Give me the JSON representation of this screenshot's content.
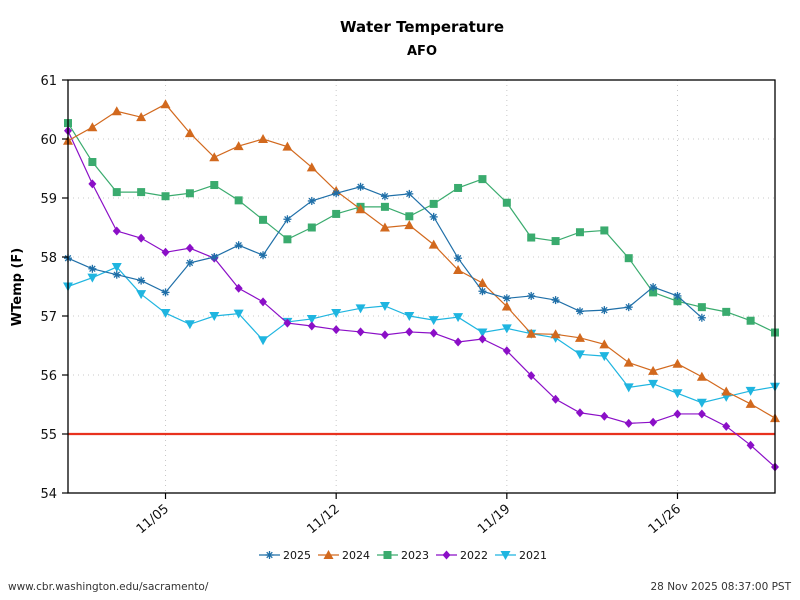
{
  "chart_data": {
    "type": "line",
    "title": "Water Temperature",
    "subtitle": "AFO",
    "xlabel": "",
    "ylabel": "WTemp (F)",
    "ylim": [
      54,
      61
    ],
    "yticks": [
      54,
      55,
      56,
      57,
      58,
      59,
      60,
      61
    ],
    "x_domain_days": [
      1,
      30
    ],
    "x_start_date": "11/01",
    "x_end_date": "11/30",
    "xticks": [
      {
        "day": 5,
        "label": "11/05"
      },
      {
        "day": 12,
        "label": "11/12"
      },
      {
        "day": 19,
        "label": "11/19"
      },
      {
        "day": 26,
        "label": "11/26"
      }
    ],
    "grid": true,
    "legend_position": "bottom-center",
    "reference_line": {
      "value": 55,
      "color": "#e8321e"
    },
    "series": [
      {
        "name": "2025",
        "color": "#1f6fa8",
        "marker": "asterisk",
        "start_day": 1,
        "values": [
          57.98,
          57.8,
          57.7,
          57.6,
          57.4,
          57.9,
          58.0,
          58.2,
          58.03,
          58.64,
          58.95,
          59.08,
          59.19,
          59.03,
          59.07,
          58.68,
          57.98,
          57.42,
          57.3,
          57.34,
          57.27,
          57.08,
          57.1,
          57.15,
          57.49,
          57.34,
          56.97
        ]
      },
      {
        "name": "2024",
        "color": "#d2691e",
        "marker": "triangle-up",
        "start_day": 1,
        "values": [
          59.97,
          60.2,
          60.47,
          60.37,
          60.59,
          60.1,
          59.69,
          59.88,
          60.0,
          59.87,
          59.52,
          59.12,
          58.81,
          58.5,
          58.54,
          58.21,
          57.78,
          57.56,
          57.16,
          56.7,
          56.69,
          56.63,
          56.52,
          56.21,
          56.07,
          56.19,
          55.97,
          55.72,
          55.51,
          55.27
        ]
      },
      {
        "name": "2023",
        "color": "#3aab6e",
        "marker": "square",
        "start_day": 1,
        "values": [
          60.27,
          59.61,
          59.1,
          59.1,
          59.03,
          59.08,
          59.22,
          58.96,
          58.63,
          58.3,
          58.5,
          58.73,
          58.85,
          58.85,
          58.69,
          58.9,
          59.17,
          59.32,
          58.92,
          58.33,
          58.27,
          58.42,
          58.45,
          57.98,
          57.4,
          57.25,
          57.15,
          57.07,
          56.92,
          56.72
        ]
      },
      {
        "name": "2022",
        "color": "#8b0fc7",
        "marker": "diamond",
        "start_day": 1,
        "values": [
          60.14,
          59.24,
          58.44,
          58.32,
          58.08,
          58.15,
          57.98,
          57.47,
          57.24,
          56.88,
          56.83,
          56.77,
          56.73,
          56.68,
          56.73,
          56.71,
          56.56,
          56.61,
          56.41,
          55.99,
          55.59,
          55.36,
          55.3,
          55.18,
          55.2,
          55.34,
          55.34,
          55.13,
          54.81,
          54.44
        ]
      },
      {
        "name": "2021",
        "color": "#1fb5e0",
        "marker": "triangle-down",
        "start_day": 1,
        "values": [
          57.5,
          57.65,
          57.83,
          57.37,
          57.05,
          56.86,
          57.0,
          57.04,
          56.59,
          56.9,
          56.95,
          57.05,
          57.13,
          57.17,
          57.0,
          56.93,
          56.98,
          56.72,
          56.79,
          56.7,
          56.63,
          56.35,
          56.32,
          55.79,
          55.85,
          55.69,
          55.53,
          55.63,
          55.73,
          55.8
        ]
      }
    ]
  },
  "footer": {
    "left": "www.cbr.washington.edu/sacramento/",
    "right": "28 Nov 2025 08:37:00 PST"
  }
}
